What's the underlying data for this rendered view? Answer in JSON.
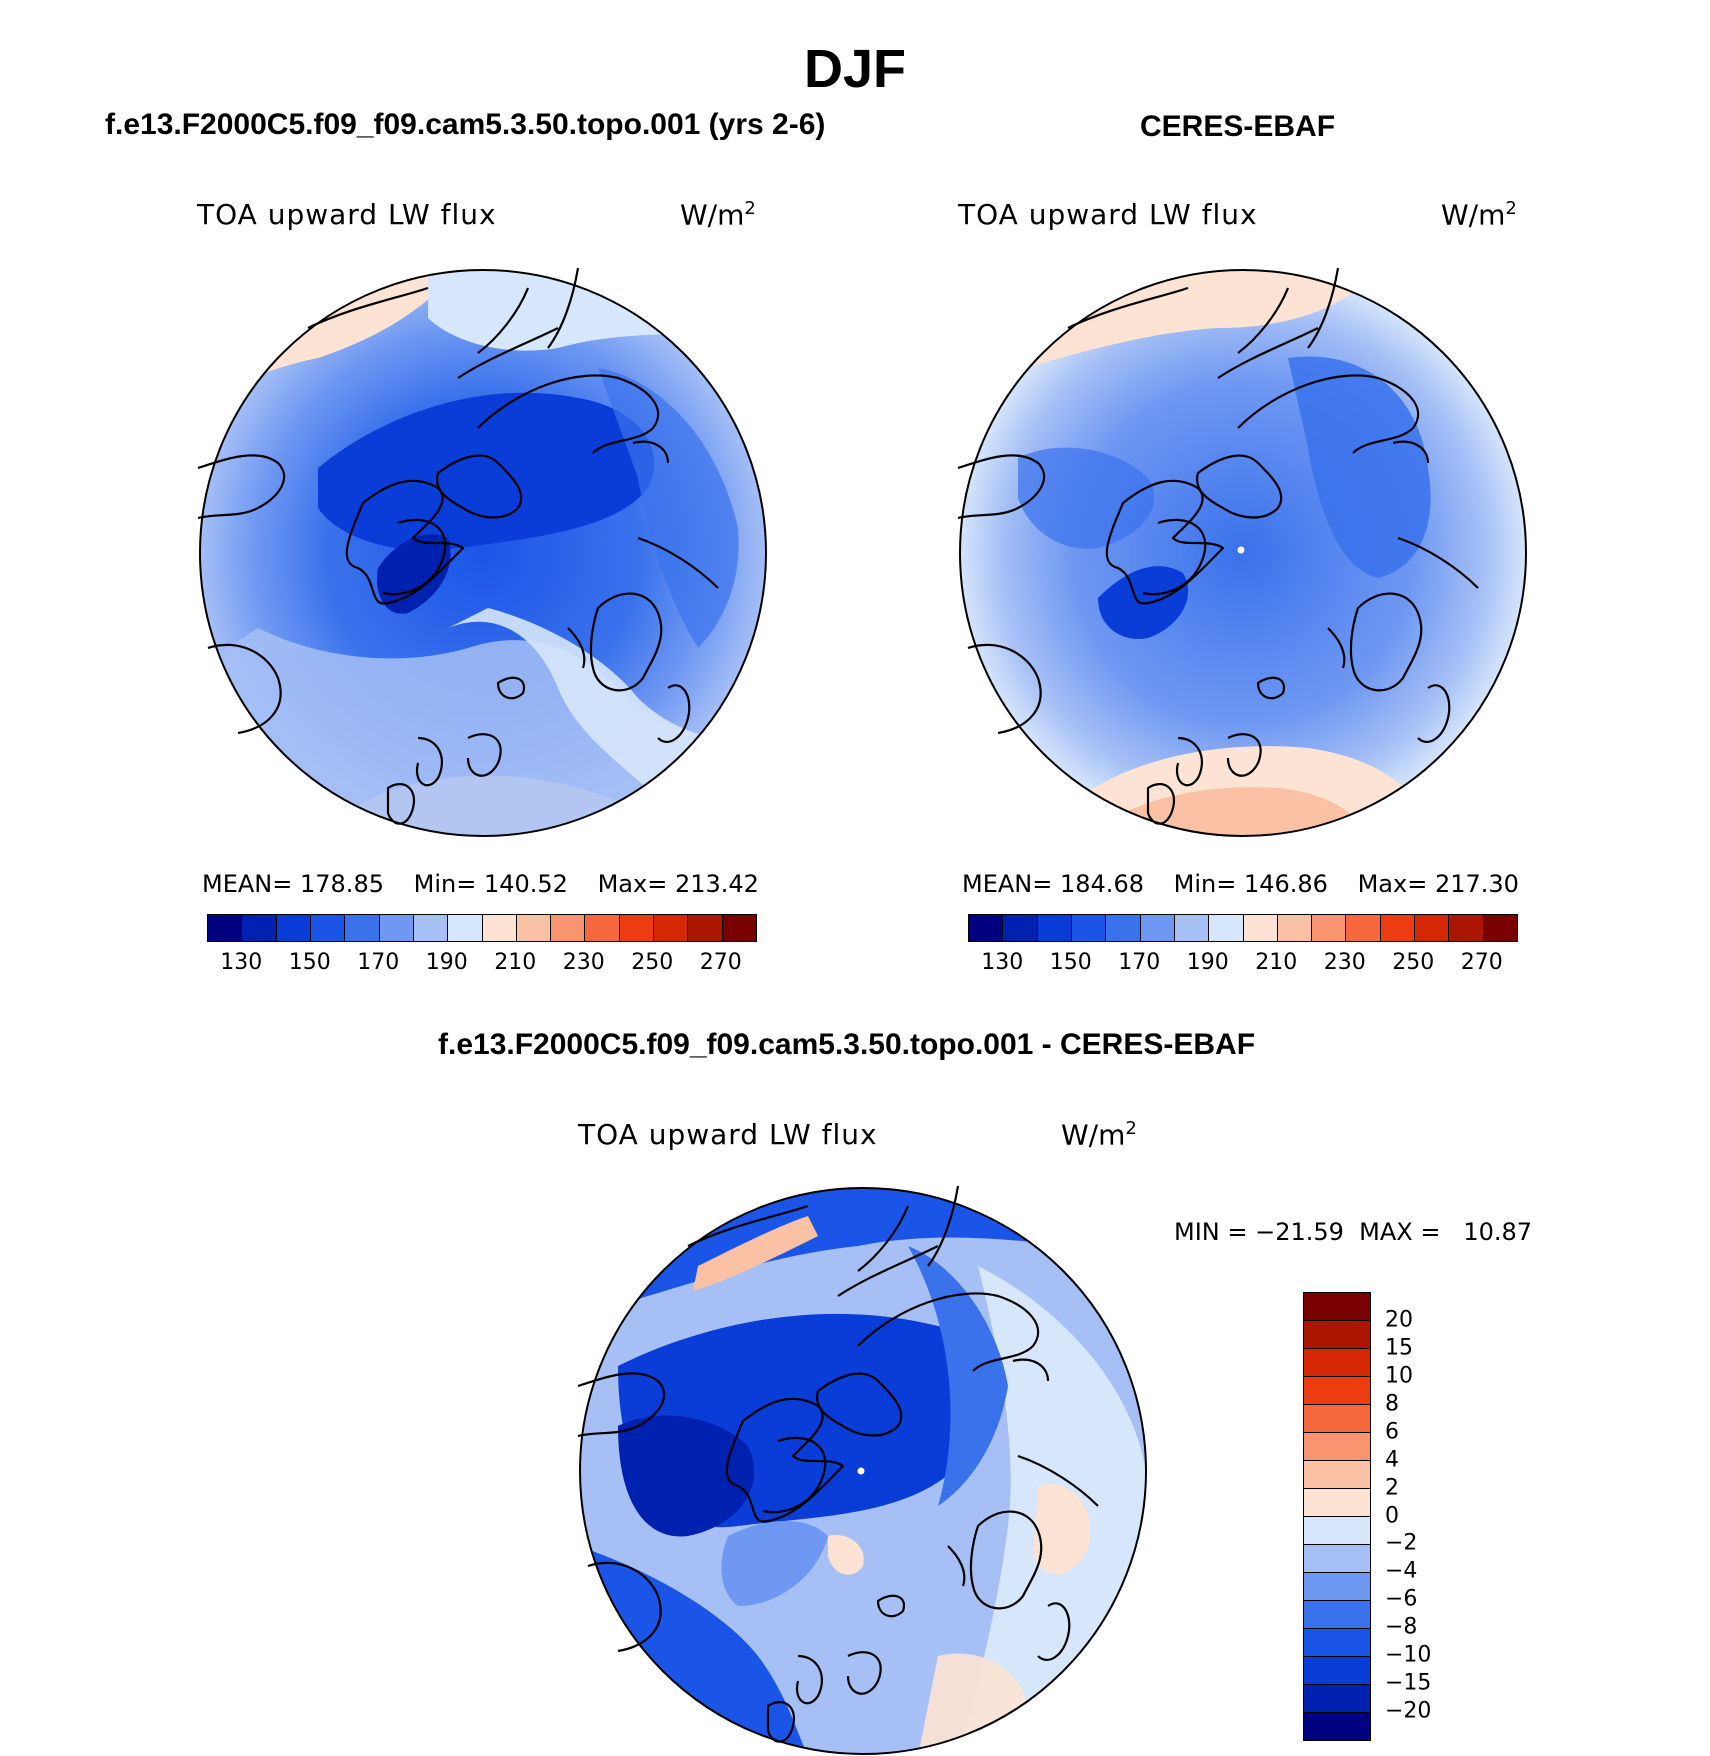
{
  "figure": {
    "season": "DJF",
    "colors": {
      "ramp": [
        "#000080",
        "#0020b0",
        "#0a3cd8",
        "#1a55e8",
        "#3a72ec",
        "#6f98f2",
        "#a6c0f6",
        "#d6e6fb",
        "#fde3d4",
        "#fbc1a5",
        "#f89570",
        "#f5673c",
        "#ee3c12",
        "#d42704",
        "#ab1600",
        "#7a0000"
      ],
      "coast": "#000000",
      "pole_dot": "#ffffff"
    }
  },
  "panels": [
    {
      "title": "f.e13.F2000C5.f09_f09.cam5.3.50.topo.001 (yrs 2-6)",
      "variable": "TOA upward LW flux",
      "units_base": "W/m",
      "units_exp": "2",
      "stats": {
        "mean_label": "MEAN=",
        "mean": "178.85",
        "min_label": "Min=",
        "min": "140.52",
        "max_label": "Max=",
        "max": "213.42"
      },
      "colorbar_ticks": [
        "130",
        "150",
        "170",
        "190",
        "210",
        "230",
        "250",
        "270"
      ]
    },
    {
      "title": "CERES-EBAF",
      "variable": "TOA upward LW flux",
      "units_base": "W/m",
      "units_exp": "2",
      "stats": {
        "mean_label": "MEAN=",
        "mean": "184.68",
        "min_label": "Min=",
        "min": "146.86",
        "max_label": "Max=",
        "max": "217.30"
      },
      "colorbar_ticks": [
        "130",
        "150",
        "170",
        "190",
        "210",
        "230",
        "250",
        "270"
      ]
    }
  ],
  "diff_panel": {
    "title": "f.e13.F2000C5.f09_f09.cam5.3.50.topo.001 - CERES-EBAF",
    "variable": "TOA upward LW flux",
    "units_base": "W/m",
    "units_exp": "2",
    "minmax": "MIN = −21.59  MAX =   10.87",
    "colorbar_labels": [
      "20",
      "15",
      "10",
      "8",
      "6",
      "4",
      "2",
      "0",
      "−2",
      "−4",
      "−6",
      "−8",
      "−10",
      "−15",
      "−20"
    ],
    "colorbar_colors": [
      "#7a0000",
      "#ab1600",
      "#d42704",
      "#ee3c12",
      "#f5673c",
      "#f89570",
      "#fbc1a5",
      "#fde3d4",
      "#d6e6fb",
      "#a6c0f6",
      "#6f98f2",
      "#3a72ec",
      "#1a55e8",
      "#0a3cd8",
      "#0020b0",
      "#000080"
    ]
  }
}
